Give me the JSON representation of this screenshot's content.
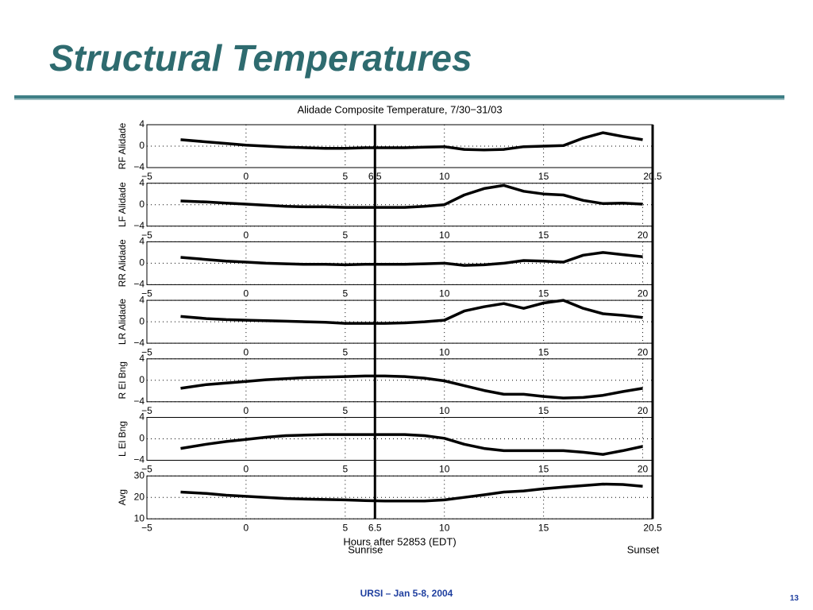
{
  "title": "Structural Temperatures",
  "footer": "URSI – Jan 5-8, 2004",
  "page_number": "13",
  "chart_data": [
    {
      "type": "line",
      "title": "Alidade Composite Temperature, 7/30−31/03",
      "ylabel": "RF Alidade",
      "color": "#000000",
      "grid": true,
      "xlim": [
        -5,
        20.5
      ],
      "xticks": [
        {
          "value": -5,
          "label": "−5"
        },
        0,
        5,
        6.5,
        10,
        15,
        20.5
      ],
      "ylim": [
        -4,
        4
      ],
      "yticks": [
        {
          "value": -4,
          "label": "−4"
        },
        0,
        4
      ],
      "x": [
        -3.3,
        -2,
        -1,
        0,
        1,
        2,
        3,
        4,
        5,
        6,
        7,
        8,
        9,
        10,
        11,
        12,
        13,
        14,
        15,
        16,
        17,
        18,
        19,
        20
      ],
      "values": [
        1.2,
        0.8,
        0.5,
        0.2,
        0,
        -0.2,
        -0.3,
        -0.4,
        -0.4,
        -0.3,
        -0.3,
        -0.3,
        -0.2,
        -0.1,
        -0.6,
        -0.7,
        -0.6,
        -0.1,
        0,
        0.1,
        1.5,
        2.5,
        1.8,
        1.2
      ]
    },
    {
      "type": "line",
      "ylabel": "LF Alidade",
      "color": "#000000",
      "grid": true,
      "xlim": [
        -5,
        20.5
      ],
      "xticks": [
        {
          "value": -5,
          "label": "−5"
        },
        0,
        5,
        10,
        15,
        20
      ],
      "ylim": [
        -4,
        4
      ],
      "yticks": [
        {
          "value": -4,
          "label": "−4"
        },
        0,
        4
      ],
      "x": [
        -3.3,
        -2,
        -1,
        0,
        1,
        2,
        3,
        4,
        5,
        6,
        7,
        8,
        9,
        10,
        11,
        12,
        13,
        14,
        15,
        16,
        17,
        18,
        19,
        20
      ],
      "values": [
        0.7,
        0.5,
        0.3,
        0.1,
        -0.1,
        -0.3,
        -0.4,
        -0.4,
        -0.5,
        -0.5,
        -0.5,
        -0.5,
        -0.3,
        0,
        1.8,
        3,
        3.6,
        2.5,
        2,
        1.8,
        0.8,
        0.2,
        0.3,
        0.1
      ]
    },
    {
      "type": "line",
      "ylabel": "RR Alidade",
      "color": "#000000",
      "grid": true,
      "xlim": [
        -5,
        20.5
      ],
      "xticks": [
        {
          "value": -5,
          "label": "−5"
        },
        0,
        5,
        10,
        15,
        20
      ],
      "ylim": [
        -4,
        4
      ],
      "yticks": [
        {
          "value": -4,
          "label": "−4"
        },
        0,
        4
      ],
      "x": [
        -3.3,
        -2,
        -1,
        0,
        1,
        2,
        3,
        4,
        5,
        6,
        7,
        8,
        9,
        10,
        11,
        12,
        13,
        14,
        15,
        16,
        17,
        18,
        19,
        20
      ],
      "values": [
        1.1,
        0.7,
        0.4,
        0.2,
        0,
        -0.1,
        -0.2,
        -0.2,
        -0.3,
        -0.2,
        -0.2,
        -0.2,
        -0.1,
        0,
        -0.4,
        -0.3,
        0,
        0.5,
        0.4,
        0.2,
        1.5,
        2,
        1.6,
        1.2
      ]
    },
    {
      "type": "line",
      "ylabel": "LR Alidade",
      "color": "#000000",
      "grid": true,
      "xlim": [
        -5,
        20.5
      ],
      "xticks": [
        {
          "value": -5,
          "label": "−5"
        },
        0,
        5,
        10,
        15,
        20
      ],
      "ylim": [
        -4,
        4
      ],
      "yticks": [
        {
          "value": -4,
          "label": "−4"
        },
        0,
        4
      ],
      "x": [
        -3.3,
        -2,
        -1,
        0,
        1,
        2,
        3,
        4,
        5,
        6,
        7,
        8,
        9,
        10,
        11,
        12,
        13,
        14,
        15,
        16,
        17,
        18,
        19,
        20
      ],
      "values": [
        1,
        0.6,
        0.4,
        0.3,
        0.2,
        0.1,
        0,
        -0.1,
        -0.3,
        -0.3,
        -0.3,
        -0.2,
        0,
        0.3,
        2,
        2.8,
        3.4,
        2.5,
        3.5,
        4,
        2.5,
        1.5,
        1.2,
        0.8
      ]
    },
    {
      "type": "line",
      "ylabel": "R El Bng",
      "color": "#000000",
      "grid": true,
      "xlim": [
        -5,
        20.5
      ],
      "xticks": [
        {
          "value": -5,
          "label": "−5"
        },
        0,
        5,
        10,
        15,
        20
      ],
      "ylim": [
        -4,
        4
      ],
      "yticks": [
        {
          "value": -4,
          "label": "−4"
        },
        0,
        4
      ],
      "x": [
        -3.3,
        -2,
        -1,
        0,
        1,
        2,
        3,
        4,
        5,
        6,
        7,
        8,
        9,
        10,
        11,
        12,
        13,
        14,
        15,
        16,
        17,
        18,
        19,
        20
      ],
      "values": [
        -1.5,
        -0.8,
        -0.5,
        -0.2,
        0.1,
        0.3,
        0.5,
        0.6,
        0.7,
        0.8,
        0.8,
        0.7,
        0.4,
        -0.1,
        -1,
        -1.9,
        -2.6,
        -2.6,
        -3,
        -3.3,
        -3.2,
        -2.8,
        -2.1,
        -1.5
      ]
    },
    {
      "type": "line",
      "ylabel": "L El Bng",
      "color": "#000000",
      "grid": true,
      "xlim": [
        -5,
        20.5
      ],
      "xticks": [
        {
          "value": -5,
          "label": "−5"
        },
        0,
        5,
        10,
        15,
        20
      ],
      "ylim": [
        -4,
        4
      ],
      "yticks": [
        {
          "value": -4,
          "label": "−4"
        },
        0,
        4
      ],
      "x": [
        -3.3,
        -2,
        -1,
        0,
        1,
        2,
        3,
        4,
        5,
        6,
        7,
        8,
        9,
        10,
        11,
        12,
        13,
        14,
        15,
        16,
        17,
        18,
        19,
        20
      ],
      "values": [
        -1.8,
        -1,
        -0.5,
        -0.1,
        0.3,
        0.6,
        0.7,
        0.8,
        0.8,
        0.8,
        0.8,
        0.8,
        0.6,
        0.1,
        -1,
        -1.8,
        -2.2,
        -2.2,
        -2.2,
        -2.2,
        -2.5,
        -2.9,
        -2.2,
        -1.4
      ]
    },
    {
      "type": "line",
      "ylabel": "Avg",
      "xlabel": "Hours after 52853 (EDT)",
      "color": "#000000",
      "grid": true,
      "xlim": [
        -5,
        20.5
      ],
      "xticks": [
        {
          "value": -5,
          "label": "−5"
        },
        0,
        5,
        6.5,
        10,
        15,
        20.5
      ],
      "ylim": [
        10,
        30
      ],
      "yticks": [
        10,
        20,
        30
      ],
      "x": [
        -3.3,
        -2,
        -1,
        0,
        1,
        2,
        3,
        4,
        5,
        6,
        7,
        8,
        9,
        10,
        11,
        12,
        13,
        14,
        15,
        16,
        17,
        18,
        19,
        20
      ],
      "values": [
        22.5,
        21.8,
        21,
        20.5,
        20,
        19.5,
        19.2,
        19,
        18.8,
        18.5,
        18.3,
        18.3,
        18.3,
        18.8,
        20,
        21.2,
        22.5,
        23,
        24,
        24.8,
        25.5,
        26.2,
        26,
        25.2
      ],
      "annotations": [
        {
          "x": 6.5,
          "label": "Sunrise"
        },
        {
          "x": 20.5,
          "label": "Sunset"
        }
      ]
    }
  ]
}
